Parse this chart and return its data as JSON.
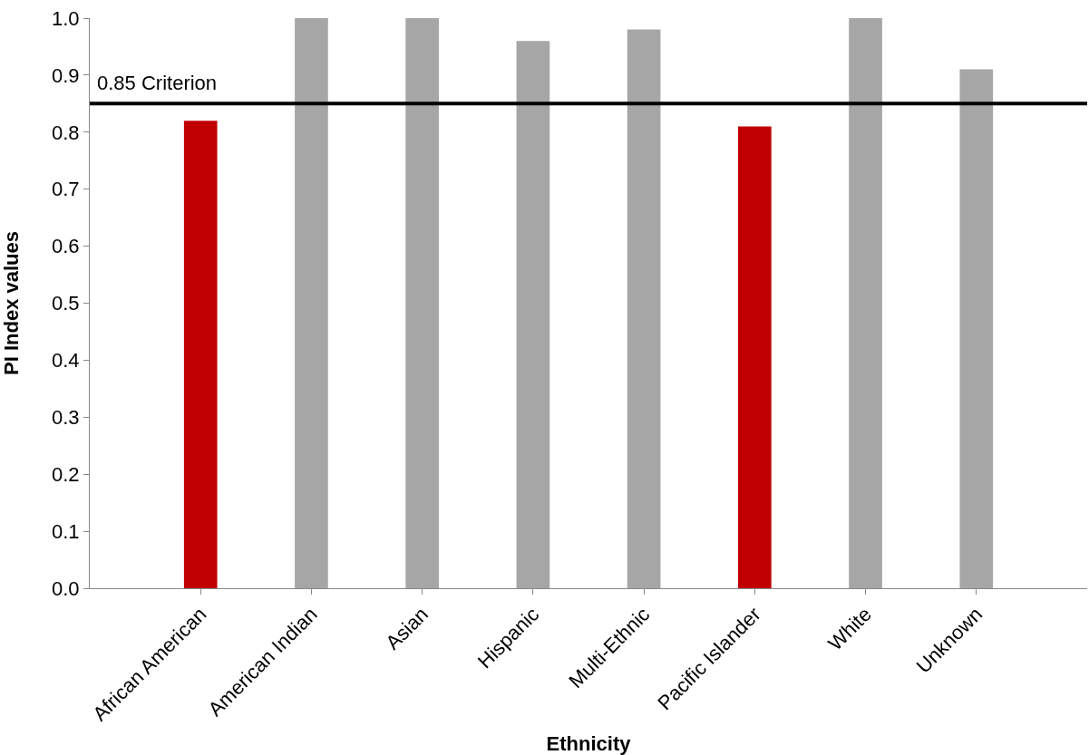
{
  "chart_data": {
    "type": "bar",
    "xlabel": "Ethnicity",
    "ylabel": "PI Index values",
    "categories": [
      "African American",
      "American Indian",
      "Asian",
      "Hispanic",
      "Multi-Ethnic",
      "Pacific Islander",
      "White",
      "Unknown"
    ],
    "values": [
      0.82,
      1.0,
      1.0,
      0.96,
      0.98,
      0.81,
      1.0,
      0.91
    ],
    "colors": [
      "#c00000",
      "#a6a6a6",
      "#a6a6a6",
      "#a6a6a6",
      "#a6a6a6",
      "#c00000",
      "#a6a6a6",
      "#a6a6a6"
    ],
    "ylim": [
      0,
      1.0
    ],
    "yticks": [
      {
        "value": 0,
        "label": "0.0"
      },
      {
        "value": 0.1,
        "label": "0.1"
      },
      {
        "value": 0.2,
        "label": "0.2"
      },
      {
        "value": 0.3,
        "label": "0.3"
      },
      {
        "value": 0.4,
        "label": "0.4"
      },
      {
        "value": 0.5,
        "label": "0.5"
      },
      {
        "value": 0.6,
        "label": "0.6"
      },
      {
        "value": 0.7,
        "label": "0.7"
      },
      {
        "value": 0.8,
        "label": "0.8"
      },
      {
        "value": 0.9,
        "label": "0.9"
      },
      {
        "value": 1.0,
        "label": "1.0"
      }
    ],
    "ref_lines": [
      {
        "axis": "y",
        "value": 0.85,
        "label": "0.85 Criterion",
        "color": "#000000",
        "line_style": "solid"
      }
    ]
  }
}
